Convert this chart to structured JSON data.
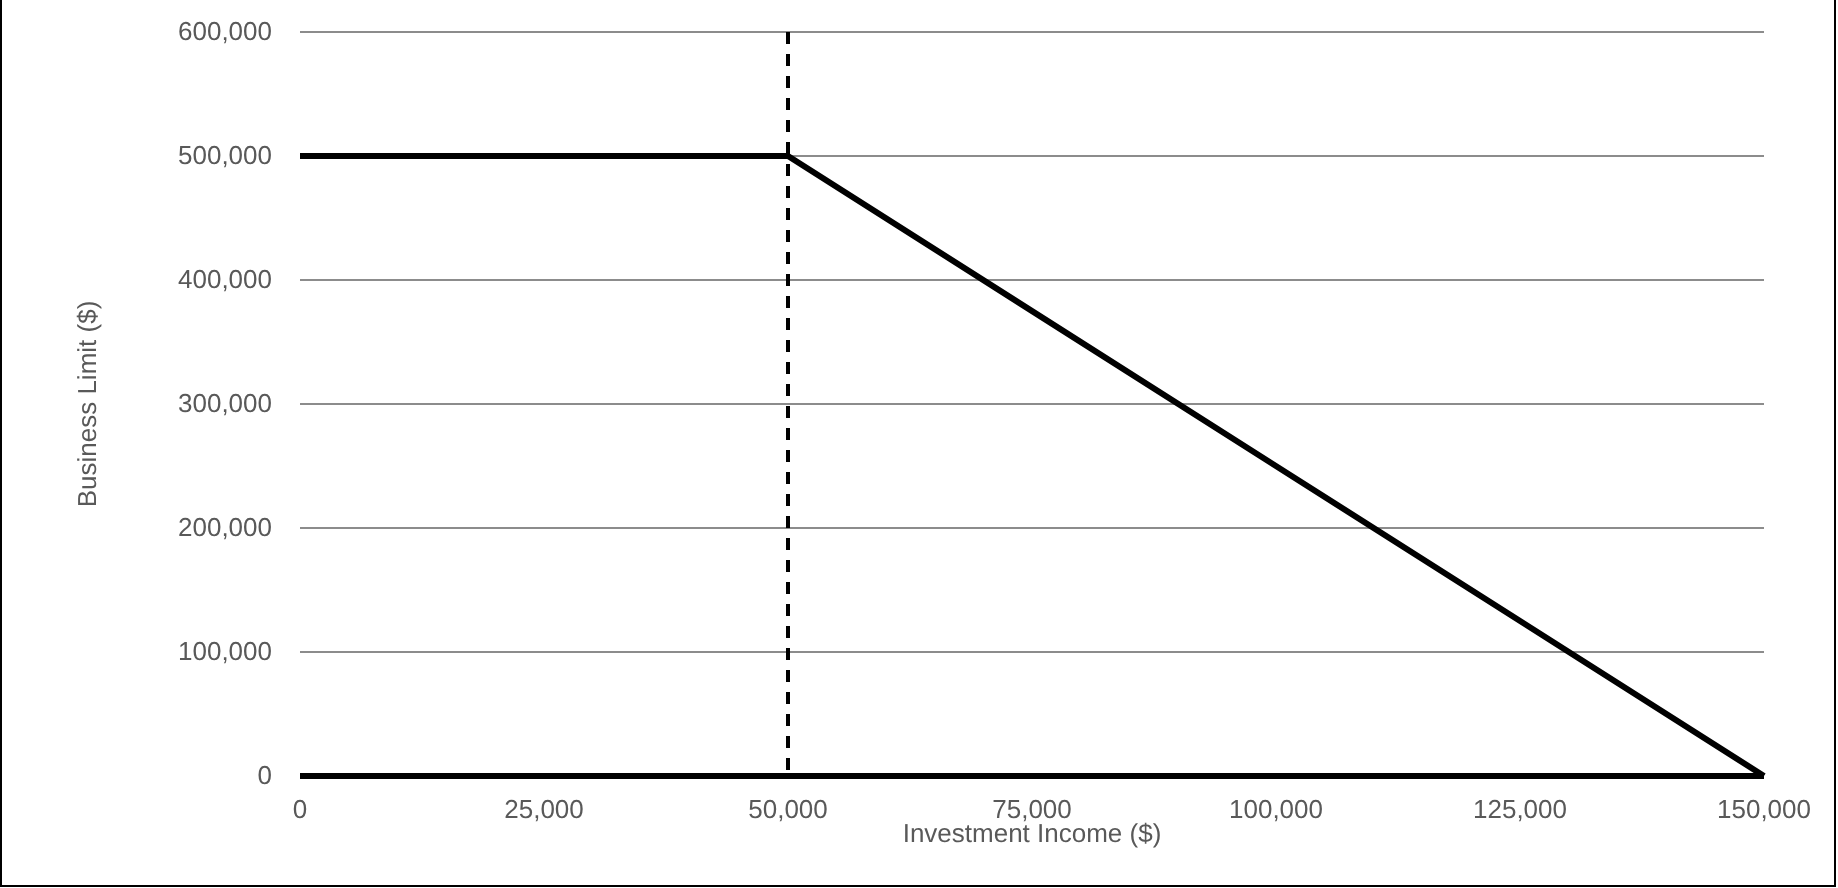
{
  "chart_data": {
    "type": "line",
    "xlabel": "Investment Income ($)",
    "ylabel": "Business Limit ($)",
    "x": [
      0,
      50000,
      150000
    ],
    "series": [
      {
        "color": "#000000",
        "values": [
          500000,
          500000,
          0
        ]
      }
    ],
    "xlim": [
      0,
      150000
    ],
    "xticks": [
      {
        "value": 0,
        "label": "0"
      },
      {
        "value": 25000,
        "label": "25,000"
      },
      {
        "value": 50000,
        "label": "50,000"
      },
      {
        "value": 75000,
        "label": "75,000"
      },
      {
        "value": 100000,
        "label": "100,000"
      },
      {
        "value": 125000,
        "label": "125,000"
      },
      {
        "value": 150000,
        "label": "150,000"
      }
    ],
    "ylim": [
      0,
      600000
    ],
    "yticks": [
      {
        "value": 0,
        "label": "0"
      },
      {
        "value": 100000,
        "label": "100,000"
      },
      {
        "value": 200000,
        "label": "200,000"
      },
      {
        "value": 300000,
        "label": "300,000"
      },
      {
        "value": 400000,
        "label": "400,000"
      },
      {
        "value": 500000,
        "label": "500,000"
      },
      {
        "value": 600000,
        "label": "600,000"
      }
    ],
    "grid": "y",
    "marker": "none",
    "line_style": "solid",
    "ref_lines": [
      {
        "axis": "x",
        "value": 50000,
        "color": "#000000",
        "line_style": "dashed"
      }
    ]
  }
}
